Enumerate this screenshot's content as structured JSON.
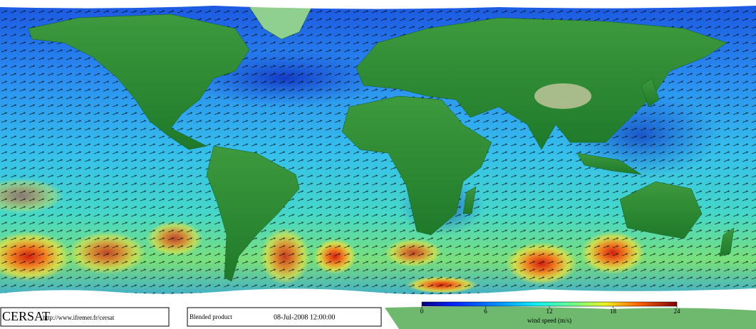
{
  "footer": {
    "logo": "CERSAT",
    "url": "http://www.ifremer.fr/cersat",
    "product": "Blended product",
    "date": "08-Jul-2008 12:00:00"
  },
  "colorbar": {
    "label": "wind speed (m/s)",
    "range": [
      0,
      24
    ],
    "ticks": [
      0,
      6,
      12,
      18,
      24
    ]
  }
}
